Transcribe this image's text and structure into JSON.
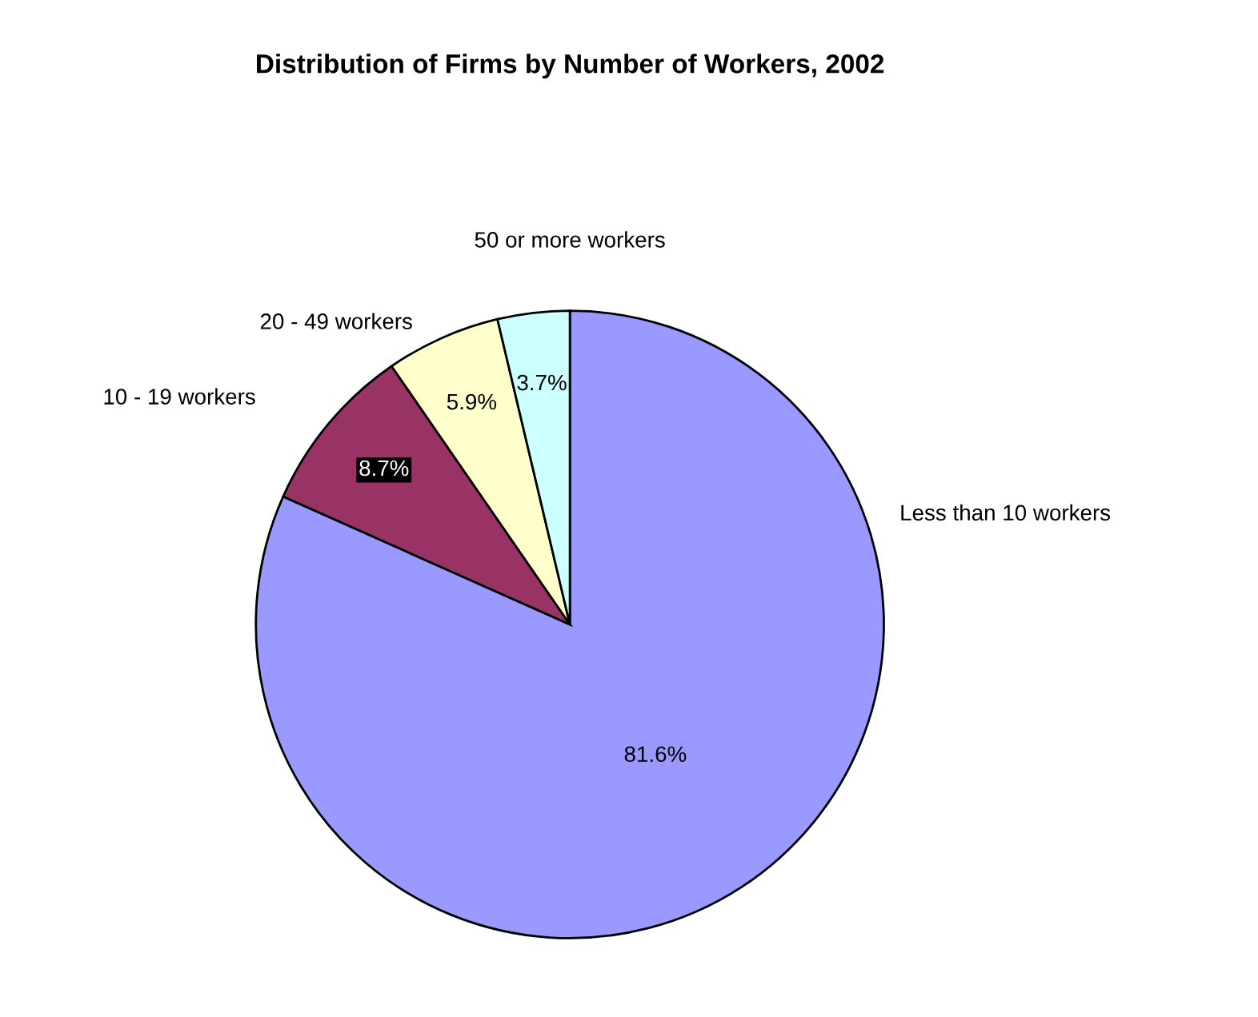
{
  "chart_data": {
    "type": "pie",
    "title": "Distribution of Firms by Number of Workers, 2002",
    "categories": [
      "Less than 10 workers",
      "10 - 19 workers",
      "20 - 49 workers",
      "50 or more workers"
    ],
    "values": [
      81.6,
      8.7,
      5.9,
      3.7
    ],
    "value_labels": [
      "81.6%",
      "8.7%",
      "5.9%",
      "3.7%"
    ],
    "colors": [
      "#9999ff",
      "#993366",
      "#ffffcc",
      "#ccffff"
    ],
    "legend": false
  }
}
